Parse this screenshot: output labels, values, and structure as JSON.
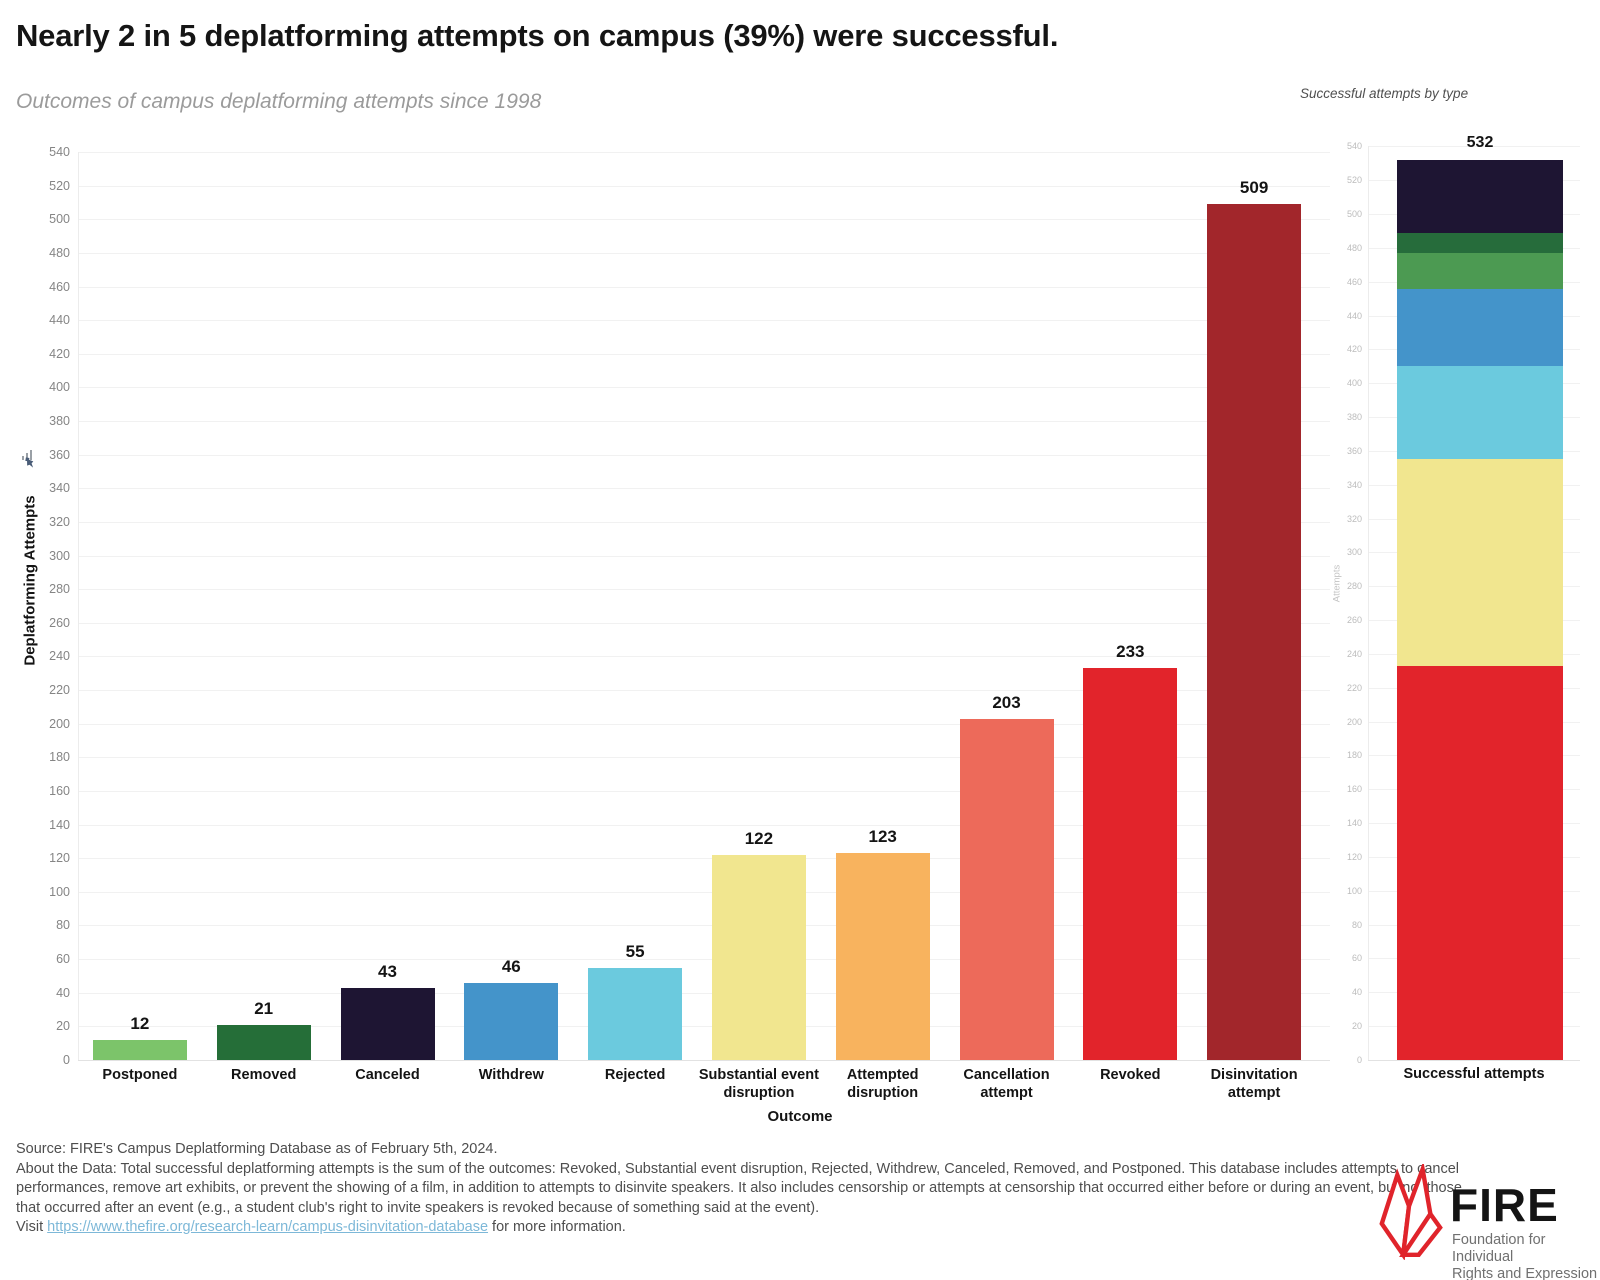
{
  "header": {
    "title": "Nearly 2 in 5 deplatforming attempts on campus (39%) were successful.",
    "subtitle": "Outcomes of campus deplatforming attempts since 1998"
  },
  "chart_data": {
    "type": "bar",
    "title": "Outcomes of campus deplatforming attempts since 1998",
    "xlabel": "Outcome",
    "ylabel": "Deplatforming Attempts",
    "ylim": [
      0,
      540
    ],
    "ytick_step": 20,
    "grid": "horizontal, light gray",
    "categories": [
      "Postponed",
      "Removed",
      "Canceled",
      "Withdrew",
      "Rejected",
      "Substantial event\ndisruption",
      "Attempted\ndisruption",
      "Cancellation\nattempt",
      "Revoked",
      "Disinvitation\nattempt"
    ],
    "values": [
      12,
      21,
      43,
      46,
      55,
      122,
      123,
      203,
      233,
      509
    ],
    "colors": [
      "#7CC46A",
      "#256E38",
      "#1E1533",
      "#4494CA",
      "#6BCADE",
      "#F1E68F",
      "#F8B35E",
      "#ED6A5A",
      "#E2242B",
      "#A2262B"
    ]
  },
  "stacked_chart": {
    "type": "stacked-bar",
    "title": "Successful attempts by type",
    "ylabel": "Attempts",
    "ylim": [
      0,
      540
    ],
    "ytick_step": 20,
    "category": "Successful attempts",
    "total": 532,
    "total_label": "532",
    "segments_bottom_to_top": [
      {
        "name": "Revoked",
        "value": 233,
        "color": "#E2242B"
      },
      {
        "name": "Substantial event disruption",
        "value": 122,
        "color": "#F1E68F"
      },
      {
        "name": "Rejected",
        "value": 55,
        "color": "#6BCADE"
      },
      {
        "name": "Withdrew",
        "value": 46,
        "color": "#4494CA"
      },
      {
        "name": "Removed",
        "value": 21,
        "color": "#4C9A52"
      },
      {
        "name": "Postponed",
        "value": 12,
        "color": "#266C3B"
      },
      {
        "name": "Canceled",
        "value": 43,
        "color": "#1E1533"
      }
    ]
  },
  "icons": {
    "chart_icon": "mini-bar-chart-icon",
    "pin_icon": "pushpin-icon"
  },
  "footer": {
    "source_line": "Source: FIRE's Campus Deplatforming Database as of February 5th, 2024.",
    "about_lines": [
      "About the Data: Total successful deplatforming attempts is the sum of the outcomes: Revoked, Substantial event disruption, Rejected, Withdrew, Canceled, Removed, and Postponed. This database includes attempts to cancel",
      "performances, remove art exhibits, or prevent the showing of a film, in addition to attempts to disinvite speakers. It also includes censorship or attempts at censorship that occurred either before or during an event, but not those",
      "that occurred after an event (e.g., a student club's right to invite speakers is revoked because of something said at the event)."
    ],
    "visit_prefix": "Visit ",
    "link_text": "https://www.thefire.org/research-learn/campus-disinvitation-database",
    "visit_suffix": " for more information."
  },
  "logo": {
    "brand_color": "#E0242B",
    "word": "FIRE",
    "tagline_line1": "Foundation for Individual",
    "tagline_line2": "Rights and Expression"
  }
}
